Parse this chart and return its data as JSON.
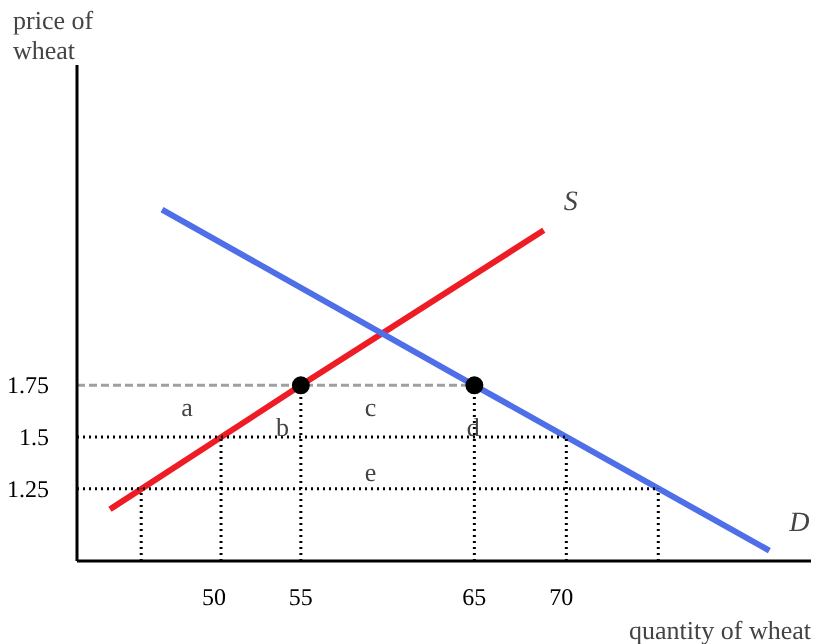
{
  "chart_data": {
    "type": "line",
    "xlabel": "quantity of wheat",
    "ylabel": "price of wheat",
    "xlim": [
      42.1,
      84.4
    ],
    "ylim": [
      0.9,
      3.3
    ],
    "xticks": [
      50,
      55,
      65,
      70
    ],
    "yticks": [
      1.25,
      1.5,
      1.75
    ],
    "grid": false,
    "series": [
      {
        "name": "S",
        "color": "#ee1c25",
        "line_style": "solid",
        "x": [
          44,
          55,
          69
        ],
        "values": [
          1.15,
          1.75,
          2.5
        ]
      },
      {
        "name": "D",
        "color": "#4f6fe8",
        "line_style": "solid",
        "x": [
          47,
          65,
          82
        ],
        "values": [
          2.6,
          1.75,
          0.95
        ]
      },
      {
        "type": "line",
        "color": "#a0a0a0",
        "line_style": "dashed",
        "x": [
          42.1,
          65
        ],
        "values": [
          1.75,
          1.75
        ]
      },
      {
        "type": "line",
        "color": "#000000",
        "line_style": "dotted",
        "x": [
          42.1,
          70.3
        ],
        "values": [
          1.5,
          1.5
        ]
      },
      {
        "type": "line",
        "color": "#000000",
        "line_style": "dotted",
        "x": [
          42.1,
          75.6
        ],
        "values": [
          1.25,
          1.25
        ]
      },
      {
        "type": "line",
        "color": "#000000",
        "line_style": "dotted",
        "x": [
          45.8,
          45.8
        ],
        "values": [
          0.9,
          1.25
        ]
      },
      {
        "type": "line",
        "color": "#000000",
        "line_style": "dotted",
        "x": [
          50.4,
          50.4
        ],
        "values": [
          0.9,
          1.5
        ]
      },
      {
        "type": "line",
        "color": "#000000",
        "line_style": "dotted",
        "x": [
          55,
          55
        ],
        "values": [
          0.9,
          1.75
        ]
      },
      {
        "type": "line",
        "color": "#000000",
        "line_style": "dotted",
        "x": [
          65,
          65
        ],
        "values": [
          0.9,
          1.75
        ]
      },
      {
        "type": "line",
        "color": "#000000",
        "line_style": "dotted",
        "x": [
          70.3,
          70.3
        ],
        "values": [
          0.9,
          1.5
        ]
      },
      {
        "type": "line",
        "color": "#000000",
        "line_style": "dotted",
        "x": [
          75.6,
          75.6
        ],
        "values": [
          0.9,
          1.25
        ]
      },
      {
        "type": "scatter",
        "color": "#000000",
        "marker": "circle",
        "x": [
          55,
          65
        ],
        "values": [
          1.75,
          1.75
        ]
      }
    ],
    "annotations": [
      "a",
      "b",
      "c",
      "d",
      "e"
    ]
  }
}
